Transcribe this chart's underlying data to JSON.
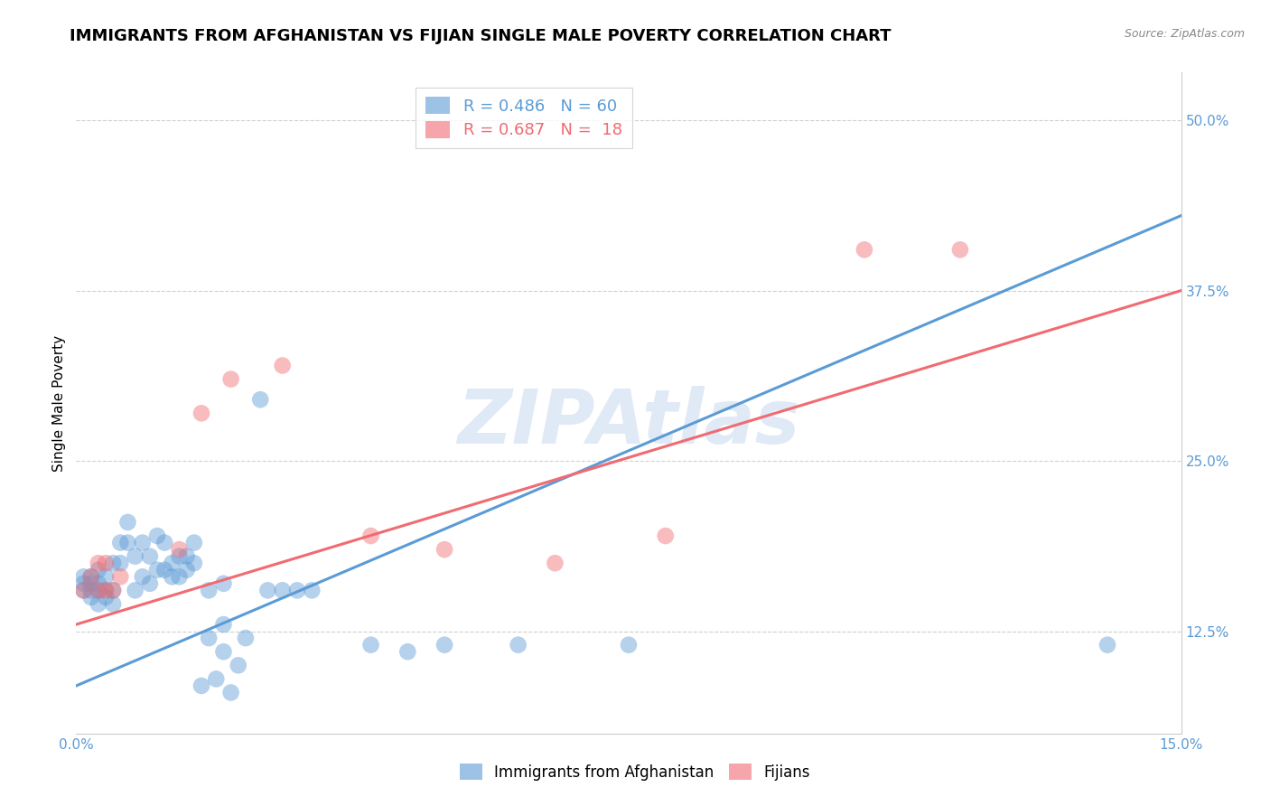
{
  "title": "IMMIGRANTS FROM AFGHANISTAN VS FIJIAN SINGLE MALE POVERTY CORRELATION CHART",
  "source": "Source: ZipAtlas.com",
  "xlabel_ticks": [
    "0.0%",
    "15.0%"
  ],
  "ylabel_ticks": [
    "12.5%",
    "25.0%",
    "37.5%",
    "50.0%"
  ],
  "ylabel_label": "Single Male Poverty",
  "xlim": [
    0.0,
    0.15
  ],
  "ylim": [
    0.05,
    0.535
  ],
  "ytick_positions": [
    0.125,
    0.25,
    0.375,
    0.5
  ],
  "xtick_positions": [
    0.0,
    0.15
  ],
  "blue_color": "#5b9bd5",
  "pink_color": "#f06b72",
  "watermark": "ZIPAtlas",
  "blue_scatter": [
    [
      0.001,
      0.155
    ],
    [
      0.001,
      0.16
    ],
    [
      0.001,
      0.165
    ],
    [
      0.002,
      0.15
    ],
    [
      0.002,
      0.155
    ],
    [
      0.002,
      0.16
    ],
    [
      0.002,
      0.165
    ],
    [
      0.003,
      0.145
    ],
    [
      0.003,
      0.155
    ],
    [
      0.003,
      0.16
    ],
    [
      0.003,
      0.17
    ],
    [
      0.004,
      0.15
    ],
    [
      0.004,
      0.155
    ],
    [
      0.004,
      0.165
    ],
    [
      0.005,
      0.145
    ],
    [
      0.005,
      0.155
    ],
    [
      0.005,
      0.175
    ],
    [
      0.006,
      0.175
    ],
    [
      0.006,
      0.19
    ],
    [
      0.007,
      0.19
    ],
    [
      0.007,
      0.205
    ],
    [
      0.008,
      0.155
    ],
    [
      0.008,
      0.18
    ],
    [
      0.009,
      0.165
    ],
    [
      0.009,
      0.19
    ],
    [
      0.01,
      0.16
    ],
    [
      0.01,
      0.18
    ],
    [
      0.011,
      0.17
    ],
    [
      0.011,
      0.195
    ],
    [
      0.012,
      0.17
    ],
    [
      0.012,
      0.19
    ],
    [
      0.013,
      0.165
    ],
    [
      0.013,
      0.175
    ],
    [
      0.014,
      0.165
    ],
    [
      0.014,
      0.18
    ],
    [
      0.015,
      0.17
    ],
    [
      0.015,
      0.18
    ],
    [
      0.016,
      0.175
    ],
    [
      0.016,
      0.19
    ],
    [
      0.017,
      0.085
    ],
    [
      0.018,
      0.12
    ],
    [
      0.018,
      0.155
    ],
    [
      0.019,
      0.09
    ],
    [
      0.02,
      0.11
    ],
    [
      0.02,
      0.13
    ],
    [
      0.02,
      0.16
    ],
    [
      0.021,
      0.08
    ],
    [
      0.022,
      0.1
    ],
    [
      0.023,
      0.12
    ],
    [
      0.025,
      0.295
    ],
    [
      0.026,
      0.155
    ],
    [
      0.028,
      0.155
    ],
    [
      0.03,
      0.155
    ],
    [
      0.032,
      0.155
    ],
    [
      0.04,
      0.115
    ],
    [
      0.045,
      0.11
    ],
    [
      0.05,
      0.115
    ],
    [
      0.06,
      0.115
    ],
    [
      0.075,
      0.115
    ],
    [
      0.14,
      0.115
    ]
  ],
  "pink_scatter": [
    [
      0.001,
      0.155
    ],
    [
      0.002,
      0.165
    ],
    [
      0.003,
      0.155
    ],
    [
      0.003,
      0.175
    ],
    [
      0.004,
      0.155
    ],
    [
      0.004,
      0.175
    ],
    [
      0.005,
      0.155
    ],
    [
      0.006,
      0.165
    ],
    [
      0.014,
      0.185
    ],
    [
      0.017,
      0.285
    ],
    [
      0.021,
      0.31
    ],
    [
      0.028,
      0.32
    ],
    [
      0.04,
      0.195
    ],
    [
      0.05,
      0.185
    ],
    [
      0.065,
      0.175
    ],
    [
      0.08,
      0.195
    ],
    [
      0.107,
      0.405
    ],
    [
      0.12,
      0.405
    ]
  ],
  "blue_line_x": [
    0.0,
    0.15
  ],
  "blue_line_y": [
    0.085,
    0.43
  ],
  "pink_line_x": [
    0.0,
    0.15
  ],
  "pink_line_y": [
    0.13,
    0.375
  ],
  "grid_color": "#d0d0d0",
  "title_fontsize": 13,
  "axis_tick_fontsize": 11,
  "ylabel_fontsize": 11
}
